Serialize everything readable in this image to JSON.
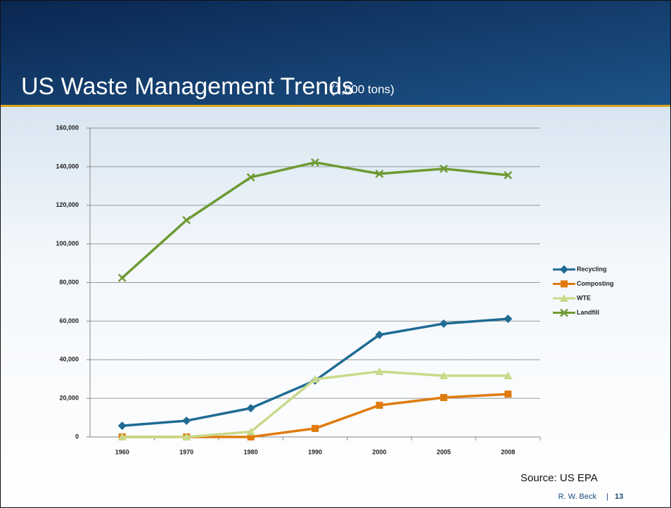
{
  "chart_data": {
    "type": "line",
    "title": "US Waste Management Trends",
    "subtitle": "(1,000 tons)",
    "categories": [
      "1960",
      "1970",
      "1980",
      "1990",
      "2000",
      "2005",
      "2008"
    ],
    "series": [
      {
        "name": "Recycling",
        "color": "#1f6b94",
        "marker": "diamond",
        "values": [
          5800,
          8400,
          14900,
          29200,
          52900,
          58700,
          61200
        ]
      },
      {
        "name": "Composting",
        "color": "#e07b0e",
        "marker": "square",
        "values": [
          0,
          0,
          0,
          4400,
          16400,
          20400,
          22200
        ]
      },
      {
        "name": "WTE",
        "color": "#c9d98a",
        "marker": "triangle",
        "values": [
          0,
          0,
          2700,
          29900,
          33900,
          31700,
          31700
        ]
      },
      {
        "name": "Landfill",
        "color": "#6e9a33",
        "marker": "x",
        "values": [
          82400,
          112300,
          134500,
          142200,
          136300,
          138900,
          135600
        ]
      }
    ],
    "ylim": [
      0,
      160000
    ],
    "yticks": [
      0,
      {
        "value": 20000,
        "label": "20,000"
      },
      {
        "value": 40000,
        "label": "40,000"
      },
      {
        "value": 60000,
        "label": "60,000"
      },
      {
        "value": 80000,
        "label": "80,000"
      },
      {
        "value": 100000,
        "label": "100,000"
      },
      {
        "value": 120000,
        "label": "120,000"
      },
      {
        "value": 140000,
        "label": "140,000"
      },
      {
        "value": 160000,
        "label": "160,000"
      }
    ],
    "grid": true,
    "legend": "right"
  },
  "source": "Source: US EPA",
  "footer": {
    "author": "R. W. Beck",
    "page": "13"
  }
}
